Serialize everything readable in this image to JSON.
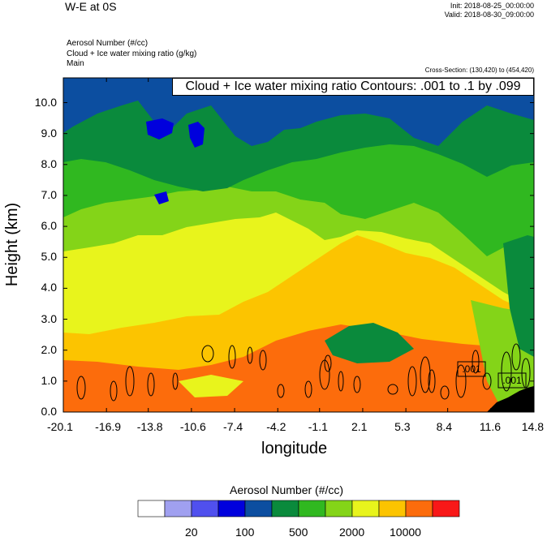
{
  "header": {
    "title": "W-E at 0S",
    "init": "Init: 2018-08-25_00:00:00",
    "valid": "Valid: 2018-08-30_09:00:00",
    "fields": [
      "Aerosol Number   (#/cc)",
      "Cloud + Ice water mixing ratio   (g/kg)",
      "Main"
    ],
    "cross_section": "Cross-Section: (130,420) to (454,420)",
    "contour_info": "Cloud + Ice water mixing ratio Contours: .001 to .1 by .099"
  },
  "chart_data": {
    "type": "contour",
    "xlabel": "longitude",
    "ylabel": "Height (km)",
    "xlim": [
      -20.1,
      14.8
    ],
    "ylim": [
      0.0,
      10.8
    ],
    "x_ticks": [
      "-20.1",
      "-16.9",
      "-13.8",
      "-10.6",
      "-7.4",
      "-4.2",
      "-1.1",
      "2.1",
      "5.3",
      "8.4",
      "11.6",
      "14.8"
    ],
    "y_ticks": [
      "0.0",
      "1.0",
      "2.0",
      "3.0",
      "4.0",
      "5.0",
      "6.0",
      "7.0",
      "8.0",
      "9.0",
      "10.0"
    ],
    "contour_labels": [
      ".001",
      ".001"
    ],
    "colorbar": {
      "title": "Aerosol Number  (#/cc)",
      "colors": [
        "#ffffff",
        "#a0a0f0",
        "#5050ee",
        "#0000dd",
        "#0c4ea0",
        "#0a8a3c",
        "#30b820",
        "#84d418",
        "#e8f41c",
        "#fcc400",
        "#fc6c0c",
        "#f81818"
      ],
      "labels": [
        "20",
        "100",
        "500",
        "2000",
        "10000"
      ]
    },
    "bands": {
      "base": "#fc6c0c",
      "levels": [
        "#fcc400",
        "#e8f41c",
        "#84d418",
        "#30b820",
        "#0a8a3c",
        "#0c4ea0"
      ],
      "blue_patches": "#0000dd",
      "terrain": "#000000"
    }
  }
}
